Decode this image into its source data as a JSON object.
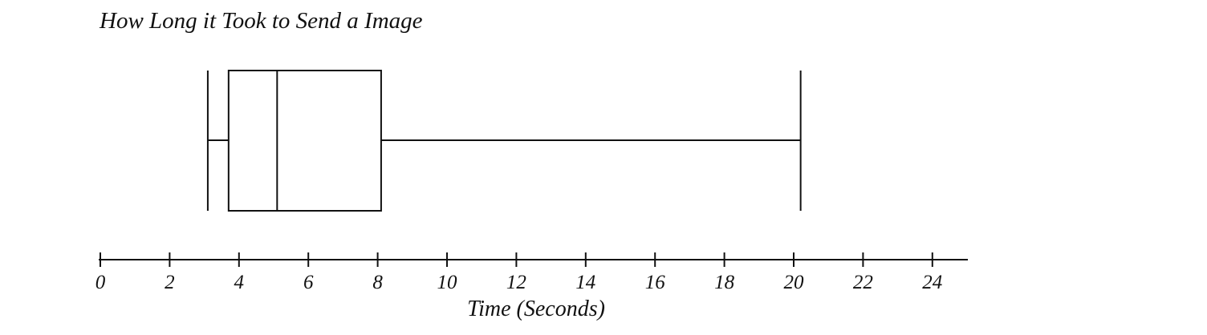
{
  "chart_data": {
    "type": "boxplot",
    "title": "How Long it Took to Send a Image",
    "xlabel": "Time (Seconds)",
    "xlim": [
      0,
      25
    ],
    "xticks": [
      0,
      2,
      4,
      6,
      8,
      10,
      12,
      14,
      16,
      18,
      20,
      22,
      24
    ],
    "tick_labels": [
      "0",
      "2",
      "4",
      "6",
      "8",
      "10",
      "12",
      "14",
      "16",
      "18",
      "20",
      "22",
      "24"
    ],
    "box": {
      "min": 3.1,
      "q1": 3.7,
      "median": 5.1,
      "q3": 8.1,
      "max": 20.2
    },
    "grid": false,
    "colors": {
      "stroke": "#111111",
      "background": "#ffffff"
    }
  }
}
